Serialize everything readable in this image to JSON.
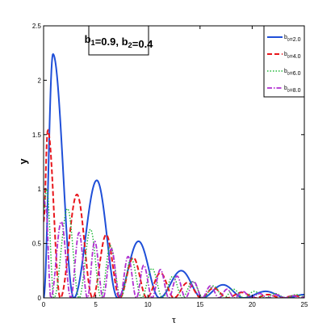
{
  "chart_data": {
    "type": "line",
    "xlabel": "τ",
    "ylabel": "y",
    "xlim": [
      0,
      25
    ],
    "ylim": [
      0,
      2.5
    ],
    "xticks": [
      0,
      5,
      10,
      15,
      20,
      25
    ],
    "xtick_labels": [
      "0",
      "5",
      "10",
      "15",
      "20",
      "25"
    ],
    "yticks": [
      0,
      0.5,
      1,
      1.5,
      2,
      2.5
    ],
    "ytick_labels": [
      "0",
      "0.5",
      "1",
      "1.5",
      "2",
      "2.5"
    ],
    "grid": false,
    "legend_position": "top-right",
    "annotation": {
      "parts": [
        {
          "text": "b",
          "style": "normal"
        },
        {
          "text": "1",
          "style": "sub"
        },
        {
          "text": "=0.9, b",
          "style": "normal"
        },
        {
          "text": "2",
          "style": "sub"
        },
        {
          "text": "=0.4",
          "style": "normal"
        }
      ]
    },
    "series": [
      {
        "legend_parts": [
          {
            "text": "b",
            "style": "normal"
          },
          {
            "text": "0",
            "style": "sub"
          },
          {
            "text": "=2.0",
            "style": "normal"
          }
        ],
        "color": "#1f4fd8",
        "dash": "solid",
        "width": 2,
        "x": [
          0,
          0.9,
          2.9,
          5.1,
          7.1,
          9.1,
          11.1,
          13.2,
          15.2,
          17.2,
          19.2,
          21.3,
          23.3,
          25
        ],
        "y": [
          0,
          2.24,
          0,
          1.08,
          0,
          0.52,
          0,
          0.25,
          0,
          0.12,
          0,
          0.06,
          0,
          0.03
        ]
      },
      {
        "legend_parts": [
          {
            "text": "b",
            "style": "normal"
          },
          {
            "text": "0",
            "style": "sub"
          },
          {
            "text": "=4.0",
            "style": "normal"
          }
        ],
        "color": "#e8161c",
        "dash": "6,3",
        "width": 2,
        "x": [
          0,
          0.4,
          1.6,
          3.2,
          4.7,
          6.0,
          7.3,
          8.6,
          9.9,
          11.2,
          12.5,
          13.8,
          15.1,
          16.3,
          17.6,
          19.0,
          20.3,
          21.5,
          22.8,
          24.1,
          25
        ],
        "y": [
          0.7,
          1.54,
          0,
          0.95,
          0,
          0.58,
          0,
          0.37,
          0,
          0.23,
          0,
          0.14,
          0,
          0.09,
          0,
          0.05,
          0,
          0.03,
          0,
          0.02,
          0
        ]
      },
      {
        "legend_parts": [
          {
            "text": "b",
            "style": "normal"
          },
          {
            "text": "0",
            "style": "sub"
          },
          {
            "text": "=6.0",
            "style": "normal"
          }
        ],
        "color": "#22b83a",
        "dash": "1.5,2",
        "width": 1.5,
        "x": [
          0,
          0.3,
          1.0,
          2.3,
          3.4,
          4.5,
          5.5,
          6.4,
          7.4,
          8.4,
          9.4,
          10.4,
          11.4,
          12.4,
          13.3,
          14.3,
          15.3,
          16.3,
          17.3,
          18.2,
          19.2,
          20.2,
          21.2,
          22.2,
          23.2,
          24.2,
          25
        ],
        "y": [
          0.8,
          1.0,
          0,
          0.82,
          0,
          0.63,
          0,
          0.48,
          0,
          0.36,
          0,
          0.27,
          0,
          0.2,
          0,
          0.15,
          0,
          0.11,
          0,
          0.08,
          0,
          0.06,
          0,
          0.04,
          0,
          0.03,
          0.01
        ]
      },
      {
        "legend_parts": [
          {
            "text": "b",
            "style": "normal"
          },
          {
            "text": "0",
            "style": "sub"
          },
          {
            "text": "=8.0",
            "style": "normal"
          }
        ],
        "color": "#b02fd0",
        "dash": "6,2,1.5,2",
        "width": 1.8,
        "x": [
          0,
          0.2,
          0.7,
          1.7,
          2.6,
          3.4,
          4.2,
          4.9,
          5.7,
          6.5,
          7.3,
          8.1,
          8.9,
          9.6,
          10.4,
          11.2,
          12.0,
          12.8,
          13.6,
          14.4,
          15.2,
          16.0,
          16.8,
          17.6,
          18.3,
          19.1,
          19.9,
          20.7,
          21.5,
          22.3,
          23.1,
          23.9,
          24.7,
          25
        ],
        "y": [
          0.9,
          0.85,
          0,
          0.7,
          0,
          0.6,
          0,
          0.52,
          0,
          0.45,
          0,
          0.38,
          0,
          0.3,
          0,
          0.26,
          0,
          0.2,
          0,
          0.15,
          0,
          0.11,
          0,
          0.08,
          0,
          0.06,
          0,
          0.04,
          0,
          0.03,
          0,
          0.02,
          0,
          0.01
        ]
      }
    ]
  }
}
